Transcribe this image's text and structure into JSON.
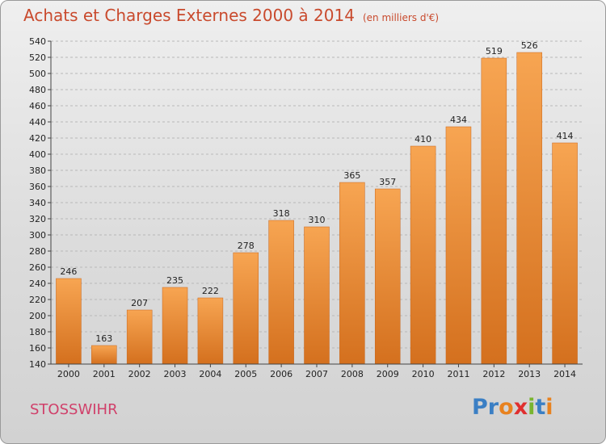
{
  "title": "Achats et Charges Externes 2000 à 2014",
  "subtitle": "(en milliers d'€)",
  "location": "STOSSWIHR",
  "logo": {
    "text": "Proxiti",
    "letters": [
      "P",
      "r",
      "o",
      "x",
      "i",
      "t",
      "i"
    ],
    "colors": [
      "#3b7fc4",
      "#3b7fc4",
      "#e8821f",
      "#e02f2f",
      "#79b52f",
      "#3b7fc4",
      "#e8821f"
    ]
  },
  "chart_data": {
    "type": "bar",
    "title": "Achats et Charges Externes 2000 à 2014",
    "xlabel": "",
    "ylabel": "",
    "categories": [
      "2000",
      "2001",
      "2002",
      "2003",
      "2004",
      "2005",
      "2006",
      "2007",
      "2008",
      "2009",
      "2010",
      "2011",
      "2012",
      "2013",
      "2014"
    ],
    "values": [
      246,
      163,
      207,
      235,
      222,
      278,
      318,
      310,
      365,
      357,
      410,
      434,
      519,
      526,
      414
    ],
    "ylim": [
      140,
      540
    ],
    "yticks": [
      140,
      160,
      180,
      200,
      220,
      240,
      260,
      280,
      300,
      320,
      340,
      360,
      380,
      400,
      420,
      440,
      460,
      480,
      500,
      520,
      540
    ],
    "grid": true,
    "bar_color": "#f0973b"
  }
}
